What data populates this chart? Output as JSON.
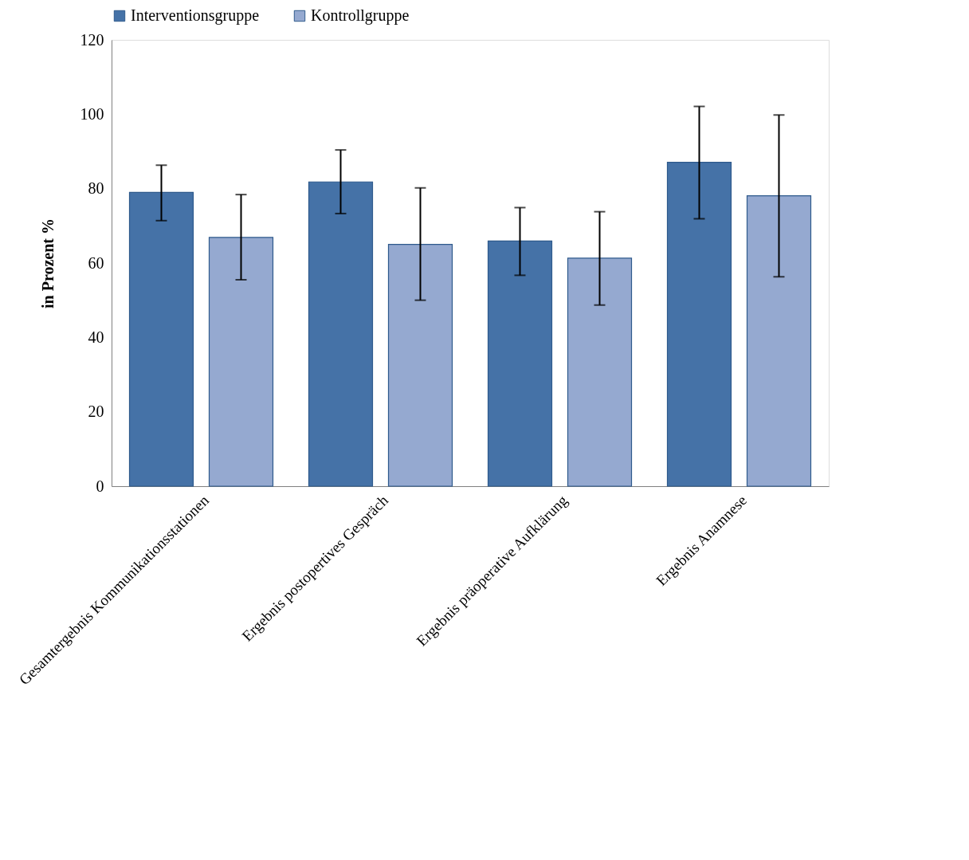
{
  "chart_data": {
    "type": "bar",
    "ylabel": "in Prozent %",
    "categories": [
      "Gesamtergebnis Kommunikationsstationen",
      "Ergebnis postopertives Gespräch",
      "Ergebnis präoperative Aufklärung",
      "Ergebnis Anamnese"
    ],
    "series": [
      {
        "name": "Interventionsgruppe",
        "color": "#4572a7",
        "values": [
          79,
          81.8,
          65.9,
          87.1
        ],
        "errors": [
          [
            71.4,
            86.3
          ],
          [
            73.3,
            90.4
          ],
          [
            56.7,
            74.9
          ],
          [
            71.9,
            102.1
          ]
        ]
      },
      {
        "name": "Kontrollgruppe",
        "color": "#95a9d0",
        "values": [
          66.9,
          65,
          61.3,
          78.1
        ],
        "errors": [
          [
            55.5,
            78.4
          ],
          [
            50,
            80.2
          ],
          [
            48.7,
            73.8
          ],
          [
            56.3,
            99.8
          ]
        ]
      }
    ],
    "ylim": [
      0,
      120
    ],
    "yticks": [
      0,
      20,
      40,
      60,
      80,
      100,
      120
    ],
    "grid": false,
    "legend": "top"
  }
}
